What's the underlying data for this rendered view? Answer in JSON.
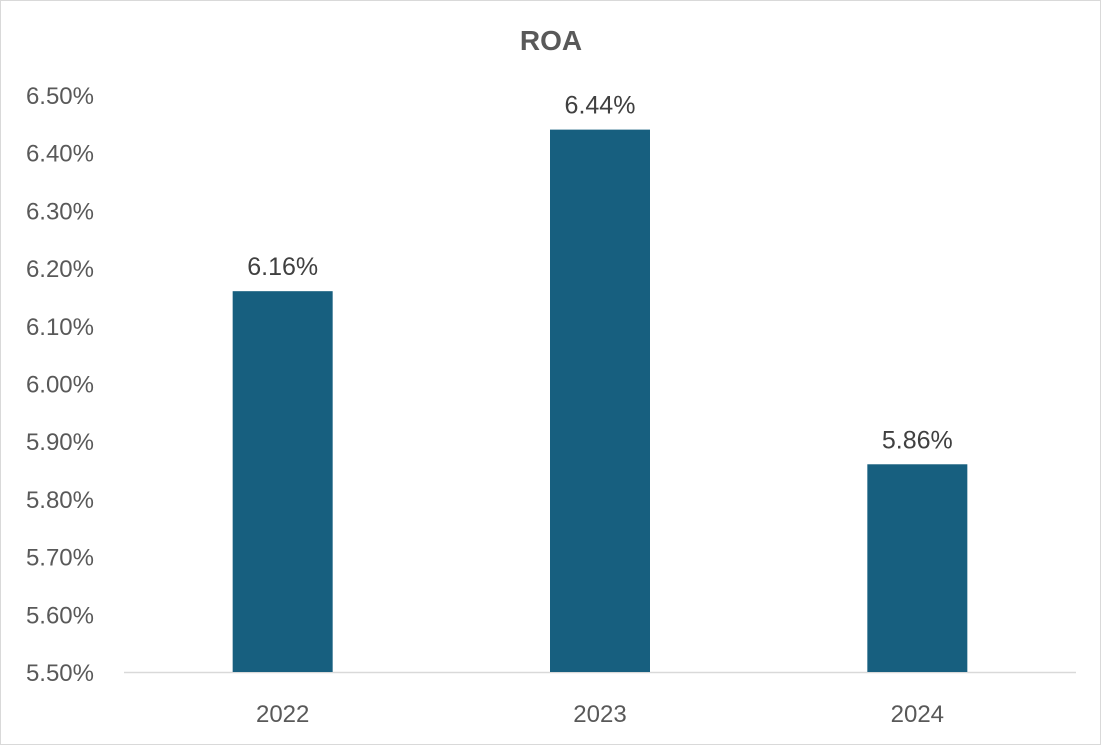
{
  "chart_data": {
    "type": "bar",
    "title": "ROA",
    "xlabel": "",
    "ylabel": "",
    "categories": [
      "2022",
      "2023",
      "2024"
    ],
    "values": [
      6.16,
      6.44,
      5.86
    ],
    "data_labels": [
      "6.16%",
      "6.44%",
      "5.86%"
    ],
    "ylim": [
      5.5,
      6.5
    ],
    "y_ticks": [
      5.5,
      5.6,
      5.7,
      5.8,
      5.9,
      6.0,
      6.1,
      6.2,
      6.3,
      6.4,
      6.5
    ],
    "y_tick_labels": [
      "5.50%",
      "5.60%",
      "5.70%",
      "5.80%",
      "5.90%",
      "6.00%",
      "6.10%",
      "6.20%",
      "6.30%",
      "6.40%",
      "6.50%"
    ],
    "grid": false,
    "legend": "none",
    "bar_color": "#175f7f",
    "axis_color": "#d9d9d9"
  }
}
